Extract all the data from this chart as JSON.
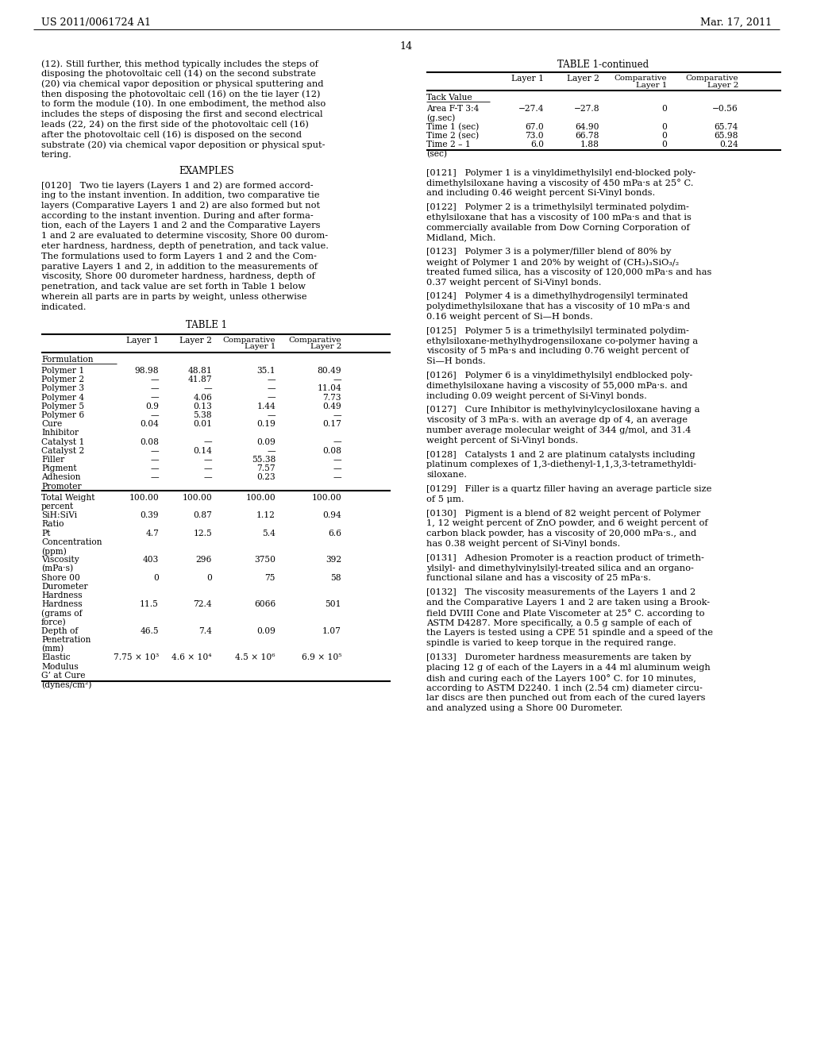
{
  "bg_color": "#ffffff",
  "header_left": "US 2011/0061724 A1",
  "header_right": "Mar. 17, 2011",
  "page_number": "14"
}
